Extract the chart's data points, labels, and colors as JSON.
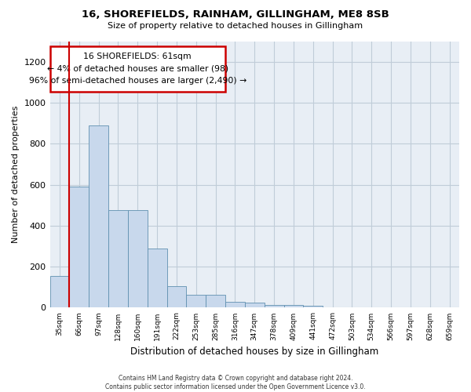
{
  "title": "16, SHOREFIELDS, RAINHAM, GILLINGHAM, ME8 8SB",
  "subtitle": "Size of property relative to detached houses in Gillingham",
  "xlabel": "Distribution of detached houses by size in Gillingham",
  "ylabel": "Number of detached properties",
  "bar_color": "#c8d8ec",
  "bar_edge_color": "#6090b0",
  "categories": [
    "35sqm",
    "66sqm",
    "97sqm",
    "128sqm",
    "160sqm",
    "191sqm",
    "222sqm",
    "253sqm",
    "285sqm",
    "316sqm",
    "347sqm",
    "378sqm",
    "409sqm",
    "441sqm",
    "472sqm",
    "503sqm",
    "534sqm",
    "566sqm",
    "597sqm",
    "628sqm",
    "659sqm"
  ],
  "values": [
    155,
    590,
    890,
    475,
    475,
    290,
    105,
    62,
    62,
    30,
    25,
    15,
    12,
    8,
    0,
    0,
    0,
    0,
    0,
    0,
    0
  ],
  "ylim": [
    0,
    1300
  ],
  "yticks": [
    0,
    200,
    400,
    600,
    800,
    1000,
    1200
  ],
  "annotation_text": "16 SHOREFIELDS: 61sqm\n← 4% of detached houses are smaller (98)\n96% of semi-detached houses are larger (2,490) →",
  "vline_color": "#cc0000",
  "background_color": "#ffffff",
  "plot_bg_color": "#e8eef5",
  "grid_color": "#c0ccd8",
  "footer_text": "Contains HM Land Registry data © Crown copyright and database right 2024.\nContains public sector information licensed under the Open Government Licence v3.0."
}
